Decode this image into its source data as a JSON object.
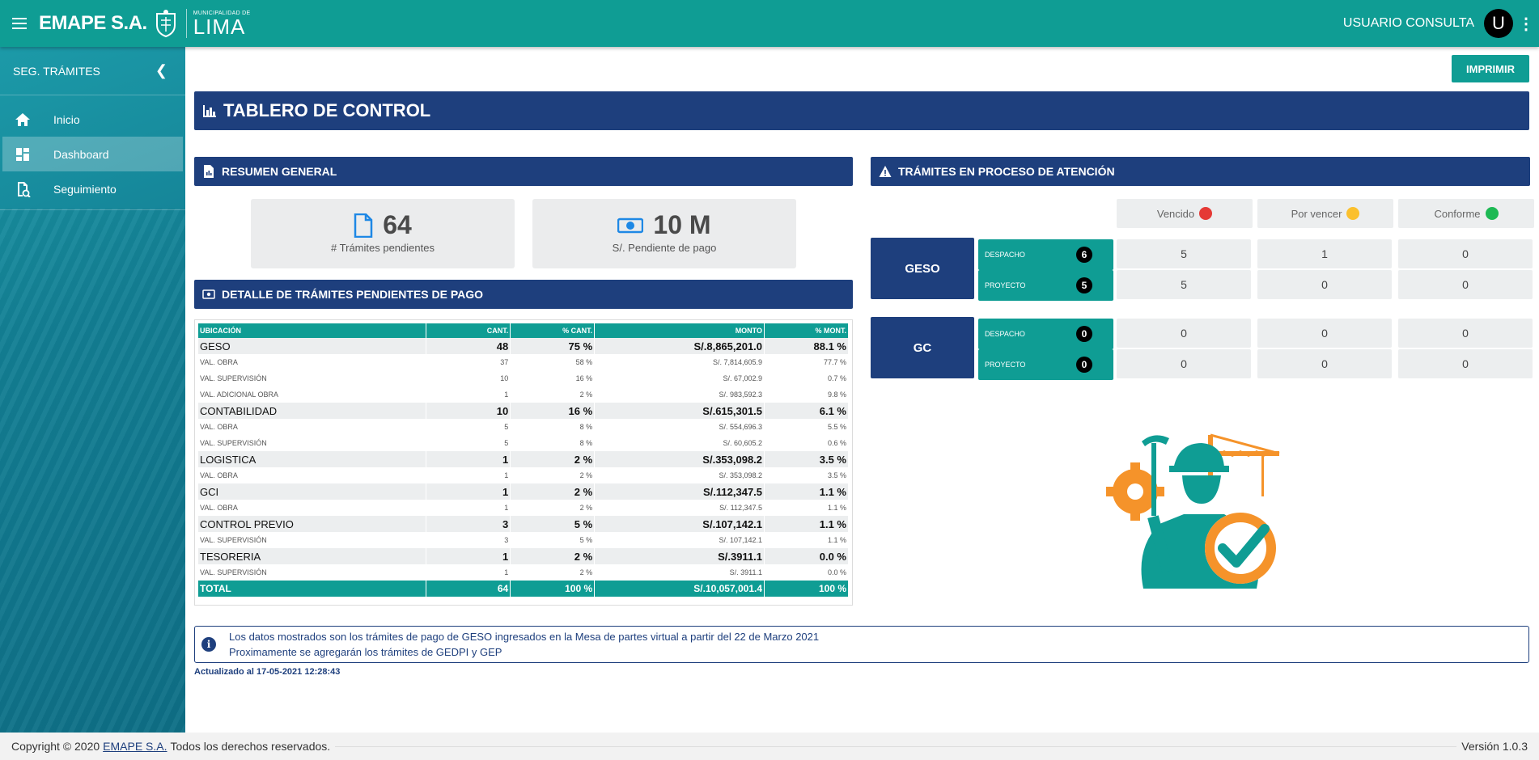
{
  "header": {
    "brand": "EMAPE S.A.",
    "muni_small": "MUNICIPALIDAD DE",
    "muni_big": "LIMA",
    "user": "USUARIO CONSULTA",
    "avatar": "U"
  },
  "sidebar": {
    "title": "SEG. TRÁMITES",
    "items": [
      {
        "label": "Inicio",
        "icon": "home-icon"
      },
      {
        "label": "Dashboard",
        "icon": "dashboard-icon"
      },
      {
        "label": "Seguimiento",
        "icon": "tracking-icon"
      }
    ]
  },
  "main": {
    "print_label": "IMPRIMIR",
    "title": "TABLERO DE CONTROL",
    "resumen": {
      "title": "RESUMEN GENERAL",
      "pendientes_value": "64",
      "pendientes_label": "# Trámites pendientes",
      "pago_value": "10 M",
      "pago_label": "S/. Pendiente de pago"
    },
    "detalle": {
      "title": "DETALLE DE TRÁMITES PENDIENTES DE PAGO",
      "headers": [
        "UBICACIÓN",
        "CANT.",
        "% CANT.",
        "MONTO",
        "% MONT."
      ],
      "rows": [
        {
          "t": "grp",
          "c": [
            "GESO",
            "48",
            "75 %",
            "S/.8,865,201.0",
            "88.1 %"
          ]
        },
        {
          "t": "sub",
          "c": [
            "VAL. OBRA",
            "37",
            "58 %",
            "S/. 7,814,605.9",
            "77.7 %"
          ]
        },
        {
          "t": "sub",
          "c": [
            "VAL. SUPERVISIÓN",
            "10",
            "16 %",
            "S/. 67,002.9",
            "0.7 %"
          ]
        },
        {
          "t": "sub",
          "c": [
            "VAL. ADICIONAL OBRA",
            "1",
            "2 %",
            "S/. 983,592.3",
            "9.8 %"
          ]
        },
        {
          "t": "grp",
          "c": [
            "CONTABILIDAD",
            "10",
            "16 %",
            "S/.615,301.5",
            "6.1 %"
          ]
        },
        {
          "t": "sub",
          "c": [
            "VAL. OBRA",
            "5",
            "8 %",
            "S/. 554,696.3",
            "5.5 %"
          ]
        },
        {
          "t": "sub",
          "c": [
            "VAL. SUPERVISIÓN",
            "5",
            "8 %",
            "S/. 60,605.2",
            "0.6 %"
          ]
        },
        {
          "t": "grp",
          "c": [
            "LOGISTICA",
            "1",
            "2 %",
            "S/.353,098.2",
            "3.5 %"
          ]
        },
        {
          "t": "sub",
          "c": [
            "VAL. OBRA",
            "1",
            "2 %",
            "S/. 353,098.2",
            "3.5 %"
          ]
        },
        {
          "t": "grp",
          "c": [
            "GCI",
            "1",
            "2 %",
            "S/.112,347.5",
            "1.1 %"
          ]
        },
        {
          "t": "sub",
          "c": [
            "VAL. OBRA",
            "1",
            "2 %",
            "S/. 112,347.5",
            "1.1 %"
          ]
        },
        {
          "t": "grp",
          "c": [
            "CONTROL PREVIO",
            "3",
            "5 %",
            "S/.107,142.1",
            "1.1 %"
          ]
        },
        {
          "t": "sub",
          "c": [
            "VAL. SUPERVISIÓN",
            "3",
            "5 %",
            "S/. 107,142.1",
            "1.1 %"
          ]
        },
        {
          "t": "grp",
          "c": [
            "TESORERIA",
            "1",
            "2 %",
            "S/.3911.1",
            "0.0 %"
          ]
        },
        {
          "t": "sub",
          "c": [
            "VAL. SUPERVISIÓN",
            "1",
            "2 %",
            "S/. 3911.1",
            "0.0 %"
          ]
        },
        {
          "t": "tot",
          "c": [
            "TOTAL",
            "64",
            "100 %",
            "S/.10,057,001.4",
            "100 %"
          ]
        }
      ]
    },
    "proceso": {
      "title": "TRÁMITES EN PROCESO DE ATENCIÓN",
      "legend": [
        {
          "label": "Vencido",
          "color": "#e53935"
        },
        {
          "label": "Por vencer",
          "color": "#fbc02d"
        },
        {
          "label": "Conforme",
          "color": "#1db954"
        }
      ],
      "units": [
        {
          "name": "GESO",
          "rows": [
            {
              "tipo": "DESPACHO",
              "count": "6",
              "vals": [
                "5",
                "1",
                "0"
              ]
            },
            {
              "tipo": "PROYECTO",
              "count": "5",
              "vals": [
                "5",
                "0",
                "0"
              ]
            }
          ]
        },
        {
          "name": "GC",
          "rows": [
            {
              "tipo": "DESPACHO",
              "count": "0",
              "vals": [
                "0",
                "0",
                "0"
              ]
            },
            {
              "tipo": "PROYECTO",
              "count": "0",
              "vals": [
                "0",
                "0",
                "0"
              ]
            }
          ]
        }
      ]
    },
    "info": {
      "line1": "Los datos mostrados son los trámites de pago de GESO ingresados en la Mesa de partes virtual a partir del 22 de Marzo 2021",
      "line2": "Proximamente se agregarán los trámites de GEDPI y GEP"
    },
    "updated": "Actualizado al 17-05-2021 12:28:43"
  },
  "footer": {
    "prefix": "Copyright © 2020",
    "link": "EMAPE S.A.",
    "suffix": "Todos los derechos reservados.",
    "version": "Versión 1.0.3"
  }
}
